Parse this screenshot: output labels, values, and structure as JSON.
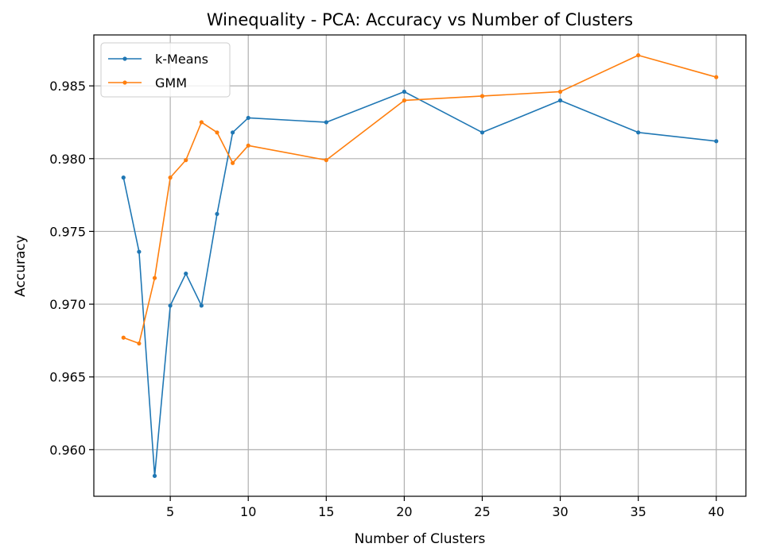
{
  "chart_data": {
    "type": "line",
    "title": "Winequality - PCA: Accuracy vs Number of Clusters",
    "xlabel": "Number of Clusters",
    "ylabel": "Accuracy",
    "xlim": [
      0.1,
      41.9
    ],
    "ylim": [
      0.9568,
      0.9885
    ],
    "xticks": [
      5,
      10,
      15,
      20,
      25,
      30,
      35,
      40
    ],
    "xtick_labels": [
      "5",
      "10",
      "15",
      "20",
      "25",
      "30",
      "35",
      "40"
    ],
    "yticks": [
      0.96,
      0.965,
      0.97,
      0.975,
      0.98,
      0.985
    ],
    "ytick_labels": [
      "0.960",
      "0.965",
      "0.970",
      "0.975",
      "0.980",
      "0.985"
    ],
    "grid": true,
    "legend_position": "top-left",
    "x": [
      2,
      3,
      4,
      5,
      6,
      7,
      8,
      9,
      10,
      15,
      20,
      25,
      30,
      35,
      40
    ],
    "series": [
      {
        "name": "k-Means",
        "color": "#1f77b4",
        "values": [
          0.9787,
          0.9736,
          0.9582,
          0.9699,
          0.9721,
          0.9699,
          0.9762,
          0.9818,
          0.9828,
          0.9825,
          0.9846,
          0.9818,
          0.984,
          0.9818,
          0.9812
        ]
      },
      {
        "name": "GMM",
        "color": "#ff7f0e",
        "values": [
          0.9677,
          0.9673,
          0.9718,
          0.9787,
          0.9799,
          0.9825,
          0.9818,
          0.9797,
          0.9809,
          0.9799,
          0.984,
          0.9843,
          0.9846,
          0.9871,
          0.9856
        ]
      }
    ]
  }
}
